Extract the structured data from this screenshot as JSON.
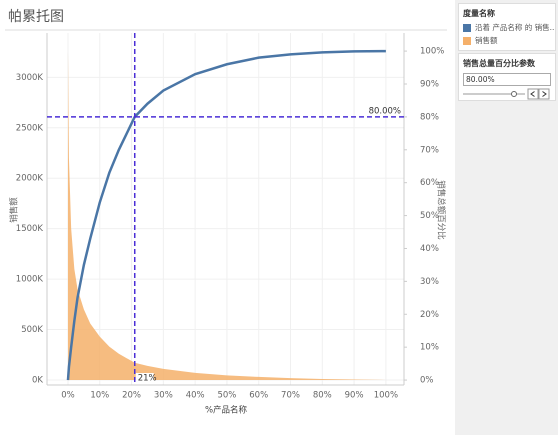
{
  "title": "帕累托图",
  "chart_data": {
    "type": "pareto",
    "x_label": "%产品名称",
    "y_label": "销售额",
    "y2_label": "销售总额百分比",
    "legend_title": "度量名称",
    "legend_position": "right",
    "x": [
      0,
      0.3,
      1,
      2,
      3,
      5,
      7,
      10,
      13,
      16,
      21,
      25,
      30,
      40,
      50,
      60,
      70,
      80,
      90,
      100
    ],
    "series": [
      {
        "name": "沿着 产品名称 的 销售...",
        "mark": "line",
        "axis": "y2",
        "color": "#4a76a6",
        "values": [
          0,
          4,
          10,
          18,
          25,
          35,
          43,
          54,
          63,
          70,
          80,
          84,
          88,
          93,
          96,
          98,
          99,
          99.6,
          99.9,
          100
        ]
      },
      {
        "name": "销售额",
        "mark": "area",
        "axis": "y",
        "color": "#f5b06a",
        "values": [
          3250000,
          2200000,
          1500000,
          1100000,
          900000,
          700000,
          560000,
          430000,
          330000,
          260000,
          170000,
          140000,
          110000,
          70000,
          45000,
          30000,
          18000,
          10000,
          5000,
          0
        ]
      }
    ],
    "xlim": [
      -6.6,
      105.7
    ],
    "xticks": [
      {
        "value": 0,
        "label": "0%"
      },
      {
        "value": 10,
        "label": "10%"
      },
      {
        "value": 20,
        "label": "20%"
      },
      {
        "value": 30,
        "label": "30%"
      },
      {
        "value": 40,
        "label": "40%"
      },
      {
        "value": 50,
        "label": "50%"
      },
      {
        "value": 60,
        "label": "60%"
      },
      {
        "value": 70,
        "label": "70%"
      },
      {
        "value": 80,
        "label": "80%"
      },
      {
        "value": 90,
        "label": "90%"
      },
      {
        "value": 100,
        "label": "100%"
      }
    ],
    "ylim": [
      -50000,
      3440000
    ],
    "yticks": [
      {
        "value": 0,
        "label": "0K"
      },
      {
        "value": 500000,
        "label": "500K"
      },
      {
        "value": 1000000,
        "label": "1000K"
      },
      {
        "value": 1500000,
        "label": "1500K"
      },
      {
        "value": 2000000,
        "label": "2000K"
      },
      {
        "value": 2500000,
        "label": "2500K"
      },
      {
        "value": 3000000,
        "label": "3000K"
      }
    ],
    "y2lim": [
      -1.5,
      105.5
    ],
    "y2ticks": [
      {
        "value": 0,
        "label": "0%"
      },
      {
        "value": 10,
        "label": "10%"
      },
      {
        "value": 20,
        "label": "20%"
      },
      {
        "value": 30,
        "label": "30%"
      },
      {
        "value": 40,
        "label": "40%"
      },
      {
        "value": 50,
        "label": "50%"
      },
      {
        "value": 60,
        "label": "60%"
      },
      {
        "value": 70,
        "label": "70%"
      },
      {
        "value": 80,
        "label": "80%"
      },
      {
        "value": 90,
        "label": "90%"
      },
      {
        "value": 100,
        "label": "100%"
      }
    ],
    "grid": true,
    "reference_lines": [
      {
        "axis": "y2",
        "value": 80,
        "label": "80.00%",
        "color": "#4a2fd6"
      },
      {
        "axis": "x",
        "value": 21,
        "label": "21%",
        "color": "#4a2fd6"
      }
    ]
  },
  "parameter": {
    "title": "销售总量百分比参数",
    "value": "80.00%"
  }
}
